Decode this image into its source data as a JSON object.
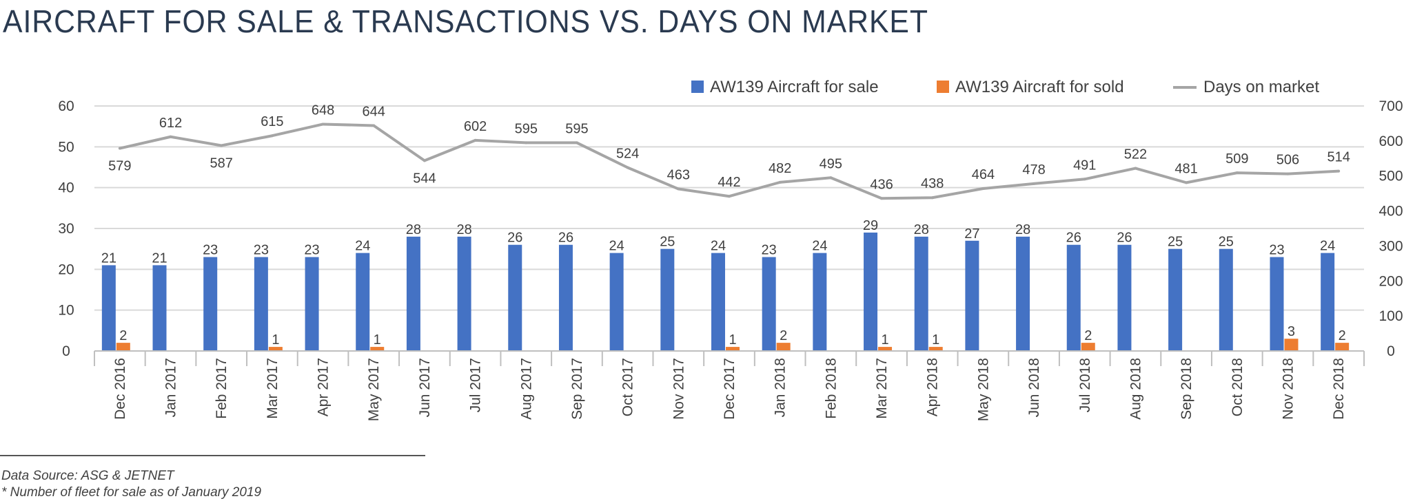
{
  "title": "AIRCRAFT FOR SALE & TRANSACTIONS VS. DAYS ON MARKET",
  "chart_data": {
    "type": "bar",
    "categories": [
      "Dec 2016",
      "Jan 2017",
      "Feb 2017",
      "Mar 2017",
      "Apr 2017",
      "May 2017",
      "Jun 2017",
      "Jul 2017",
      "Aug 2017",
      "Sep 2017",
      "Oct 2017",
      "Nov 2017",
      "Dec 2017",
      "Jan 2018",
      "Feb 2018",
      "Mar 2017",
      "Apr 2018",
      "May 2018",
      "Jun 2018",
      "Jul 2018",
      "Aug 2018",
      "Sep 2018",
      "Oct 2018",
      "Nov 2018",
      "Dec 2018"
    ],
    "series": [
      {
        "name": "AW139 Aircraft for sale",
        "type": "bar",
        "axis": "left",
        "color": "#4472c4",
        "values": [
          21,
          21,
          23,
          23,
          23,
          24,
          28,
          28,
          26,
          26,
          24,
          25,
          24,
          23,
          24,
          29,
          28,
          27,
          28,
          26,
          26,
          25,
          25,
          23,
          24
        ],
        "labels": [
          "21",
          "21",
          "23",
          "23",
          "23",
          "24",
          "28",
          "28",
          "26",
          "26",
          "24",
          "25",
          "24",
          "23",
          "24",
          "29",
          "28",
          "27",
          "28",
          "26",
          "26",
          "25",
          "25",
          "23",
          "24"
        ]
      },
      {
        "name": "AW139 Aircraft for sold",
        "type": "bar",
        "axis": "left",
        "color": "#ed7d31",
        "values": [
          2,
          0,
          0,
          1,
          0,
          1,
          0,
          0,
          0,
          0,
          0,
          0,
          1,
          2,
          0,
          1,
          1,
          0,
          0,
          2,
          0,
          0,
          0,
          3,
          2
        ],
        "labels": [
          "2",
          "",
          "",
          "1",
          "",
          "1",
          "",
          "",
          "",
          "",
          "",
          "",
          "1",
          "2",
          "",
          "1",
          "1",
          "",
          "",
          "2",
          "",
          "",
          "",
          "3",
          "2"
        ]
      },
      {
        "name": "Days on market",
        "type": "line",
        "axis": "right",
        "color": "#a5a5a5",
        "values": [
          579,
          612,
          587,
          615,
          648,
          644,
          544,
          602,
          595,
          595,
          524,
          463,
          442,
          482,
          495,
          436,
          438,
          464,
          478,
          491,
          522,
          481,
          509,
          506,
          514
        ],
        "labels": [
          "579",
          "612",
          "587",
          "615",
          "648",
          "644",
          "544",
          "602",
          "595",
          "595",
          "524",
          "463",
          "442",
          "482",
          "495",
          "436",
          "438",
          "464",
          "478",
          "491",
          "522",
          "481",
          "509",
          "506",
          "514"
        ],
        "label_below": [
          true,
          false,
          true,
          false,
          false,
          false,
          true,
          false,
          false,
          false,
          false,
          false,
          false,
          false,
          false,
          false,
          false,
          false,
          false,
          false,
          false,
          false,
          false,
          false,
          false
        ]
      }
    ],
    "y_left": {
      "min": 0,
      "max": 60,
      "ticks": [
        "0",
        "10",
        "20",
        "30",
        "40",
        "50",
        "60"
      ]
    },
    "y_right": {
      "min": 0,
      "max": 700,
      "ticks": [
        "0",
        "100",
        "200",
        "300",
        "400",
        "500",
        "600",
        "700"
      ]
    },
    "grid": true,
    "legend_position": "top-right"
  },
  "footnotes": {
    "source": "Data Source: ASG & JETNET",
    "note": "* Number of fleet for sale as of January 2019"
  }
}
